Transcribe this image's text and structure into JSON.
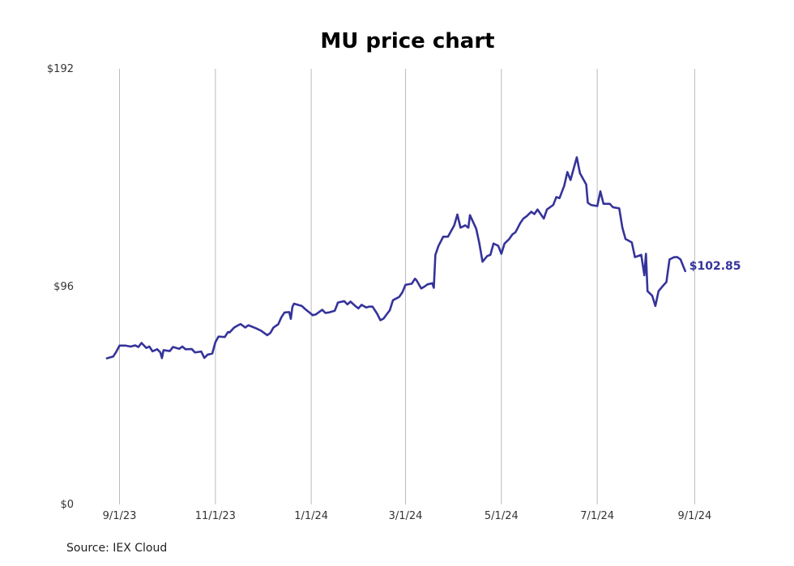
{
  "source": "Source: IEX Cloud",
  "colors": {
    "line": "#35339a",
    "grid": "#bbbbbb"
  },
  "chart_data": {
    "type": "line",
    "title": "MU price chart",
    "ylim": [
      0,
      192
    ],
    "y_ticks": [
      {
        "value": 0,
        "label": "$0"
      },
      {
        "value": 96,
        "label": "$96"
      },
      {
        "value": 192,
        "label": "$192"
      }
    ],
    "xlim": [
      "2023-08-24",
      "2024-09-24"
    ],
    "x_ticks": [
      {
        "date": "2023-09-01",
        "label": "9/1/23"
      },
      {
        "date": "2023-11-01",
        "label": "11/1/23"
      },
      {
        "date": "2024-01-01",
        "label": "1/1/24"
      },
      {
        "date": "2024-03-01",
        "label": "3/1/24"
      },
      {
        "date": "2024-05-01",
        "label": "5/1/24"
      },
      {
        "date": "2024-07-01",
        "label": "7/1/24"
      },
      {
        "date": "2024-09-01",
        "label": "9/1/24"
      }
    ],
    "grid": "vertical",
    "end_label": "$102.85",
    "series": [
      {
        "points": [
          [
            "2023-08-24",
            64.4
          ],
          [
            "2023-08-28",
            65.2
          ],
          [
            "2023-08-30",
            67.4
          ],
          [
            "2023-09-01",
            70.0
          ],
          [
            "2023-09-05",
            70.0
          ],
          [
            "2023-09-08",
            69.6
          ],
          [
            "2023-09-11",
            70.1
          ],
          [
            "2023-09-13",
            69.4
          ],
          [
            "2023-09-15",
            71.2
          ],
          [
            "2023-09-18",
            69.0
          ],
          [
            "2023-09-20",
            69.6
          ],
          [
            "2023-09-22",
            67.5
          ],
          [
            "2023-09-25",
            68.4
          ],
          [
            "2023-09-27",
            67.0
          ],
          [
            "2023-09-28",
            64.5
          ],
          [
            "2023-09-29",
            68.0
          ],
          [
            "2023-10-03",
            67.6
          ],
          [
            "2023-10-05",
            69.4
          ],
          [
            "2023-10-09",
            68.6
          ],
          [
            "2023-10-11",
            69.6
          ],
          [
            "2023-10-13",
            68.4
          ],
          [
            "2023-10-17",
            68.5
          ],
          [
            "2023-10-19",
            67.0
          ],
          [
            "2023-10-23",
            67.4
          ],
          [
            "2023-10-25",
            64.6
          ],
          [
            "2023-10-27",
            66.0
          ],
          [
            "2023-10-30",
            66.5
          ],
          [
            "2023-11-01",
            71.5
          ],
          [
            "2023-11-03",
            74.0
          ],
          [
            "2023-11-07",
            73.8
          ],
          [
            "2023-11-09",
            76.0
          ],
          [
            "2023-11-10",
            75.8
          ],
          [
            "2023-11-13",
            78.0
          ],
          [
            "2023-11-15",
            78.8
          ],
          [
            "2023-11-17",
            79.5
          ],
          [
            "2023-11-20",
            78.0
          ],
          [
            "2023-11-22",
            79.0
          ],
          [
            "2023-11-27",
            77.6
          ],
          [
            "2023-11-30",
            76.6
          ],
          [
            "2023-12-04",
            74.6
          ],
          [
            "2023-12-06",
            75.6
          ],
          [
            "2023-12-08",
            78.0
          ],
          [
            "2023-12-11",
            79.4
          ],
          [
            "2023-12-13",
            82.5
          ],
          [
            "2023-12-15",
            84.6
          ],
          [
            "2023-12-18",
            84.8
          ],
          [
            "2023-12-19",
            81.8
          ],
          [
            "2023-12-20",
            87.0
          ],
          [
            "2023-12-21",
            88.5
          ],
          [
            "2023-12-26",
            87.5
          ],
          [
            "2023-12-28",
            86.2
          ],
          [
            "2024-01-02",
            83.4
          ],
          [
            "2024-01-04",
            83.8
          ],
          [
            "2024-01-08",
            85.8
          ],
          [
            "2024-01-10",
            84.4
          ],
          [
            "2024-01-12",
            84.6
          ],
          [
            "2024-01-16",
            85.4
          ],
          [
            "2024-01-18",
            89.0
          ],
          [
            "2024-01-22",
            89.6
          ],
          [
            "2024-01-24",
            88.2
          ],
          [
            "2024-01-26",
            89.4
          ],
          [
            "2024-01-29",
            87.5
          ],
          [
            "2024-01-31",
            86.4
          ],
          [
            "2024-02-02",
            88.0
          ],
          [
            "2024-02-05",
            86.8
          ],
          [
            "2024-02-07",
            87.2
          ],
          [
            "2024-02-09",
            87.2
          ],
          [
            "2024-02-12",
            84.0
          ],
          [
            "2024-02-14",
            81.2
          ],
          [
            "2024-02-16",
            81.9
          ],
          [
            "2024-02-20",
            85.6
          ],
          [
            "2024-02-22",
            90.0
          ],
          [
            "2024-02-26",
            91.5
          ],
          [
            "2024-02-28",
            93.5
          ],
          [
            "2024-03-01",
            96.8
          ],
          [
            "2024-03-05",
            97.3
          ],
          [
            "2024-03-07",
            99.5
          ],
          [
            "2024-03-08",
            98.8
          ],
          [
            "2024-03-11",
            95.2
          ],
          [
            "2024-03-13",
            96.0
          ],
          [
            "2024-03-15",
            97.0
          ],
          [
            "2024-03-18",
            97.5
          ],
          [
            "2024-03-19",
            95.5
          ],
          [
            "2024-03-20",
            110.0
          ],
          [
            "2024-03-22",
            114.0
          ],
          [
            "2024-03-25",
            118.0
          ],
          [
            "2024-03-28",
            118.0
          ],
          [
            "2024-04-01",
            123.0
          ],
          [
            "2024-04-03",
            127.8
          ],
          [
            "2024-04-05",
            122.0
          ],
          [
            "2024-04-08",
            123.0
          ],
          [
            "2024-04-10",
            122.0
          ],
          [
            "2024-04-11",
            127.5
          ],
          [
            "2024-04-15",
            121.5
          ],
          [
            "2024-04-17",
            115.0
          ],
          [
            "2024-04-19",
            107.0
          ],
          [
            "2024-04-22",
            109.5
          ],
          [
            "2024-04-24",
            110.0
          ],
          [
            "2024-04-26",
            115.0
          ],
          [
            "2024-04-29",
            114.0
          ],
          [
            "2024-05-01",
            110.5
          ],
          [
            "2024-05-03",
            115.0
          ],
          [
            "2024-05-06",
            117.0
          ],
          [
            "2024-05-08",
            119.0
          ],
          [
            "2024-05-10",
            120.0
          ],
          [
            "2024-05-13",
            124.0
          ],
          [
            "2024-05-15",
            126.0
          ],
          [
            "2024-05-17",
            127.0
          ],
          [
            "2024-05-20",
            129.0
          ],
          [
            "2024-05-22",
            128.0
          ],
          [
            "2024-05-24",
            130.0
          ],
          [
            "2024-05-28",
            126.0
          ],
          [
            "2024-05-30",
            130.0
          ],
          [
            "2024-06-03",
            132.0
          ],
          [
            "2024-06-05",
            135.5
          ],
          [
            "2024-06-07",
            135.0
          ],
          [
            "2024-06-10",
            140.5
          ],
          [
            "2024-06-12",
            146.5
          ],
          [
            "2024-06-14",
            143.0
          ],
          [
            "2024-06-18",
            153.0
          ],
          [
            "2024-06-20",
            146.0
          ],
          [
            "2024-06-24",
            141.0
          ],
          [
            "2024-06-25",
            133.0
          ],
          [
            "2024-06-27",
            132.0
          ],
          [
            "2024-07-01",
            131.5
          ],
          [
            "2024-07-03",
            138.0
          ],
          [
            "2024-07-05",
            132.5
          ],
          [
            "2024-07-09",
            132.5
          ],
          [
            "2024-07-11",
            131.0
          ],
          [
            "2024-07-15",
            130.5
          ],
          [
            "2024-07-17",
            122.0
          ],
          [
            "2024-07-19",
            117.0
          ],
          [
            "2024-07-23",
            115.5
          ],
          [
            "2024-07-25",
            109.0
          ],
          [
            "2024-07-29",
            110.0
          ],
          [
            "2024-07-31",
            101.0
          ],
          [
            "2024-08-01",
            110.5
          ],
          [
            "2024-08-02",
            94.0
          ],
          [
            "2024-08-05",
            92.0
          ],
          [
            "2024-08-07",
            87.5
          ],
          [
            "2024-08-09",
            94.0
          ],
          [
            "2024-08-12",
            96.5
          ],
          [
            "2024-08-14",
            98.0
          ],
          [
            "2024-08-16",
            108.0
          ],
          [
            "2024-08-19",
            109.0
          ],
          [
            "2024-08-21",
            109.0
          ],
          [
            "2024-08-23",
            108.0
          ],
          [
            "2024-08-26",
            102.85
          ]
        ]
      }
    ]
  }
}
